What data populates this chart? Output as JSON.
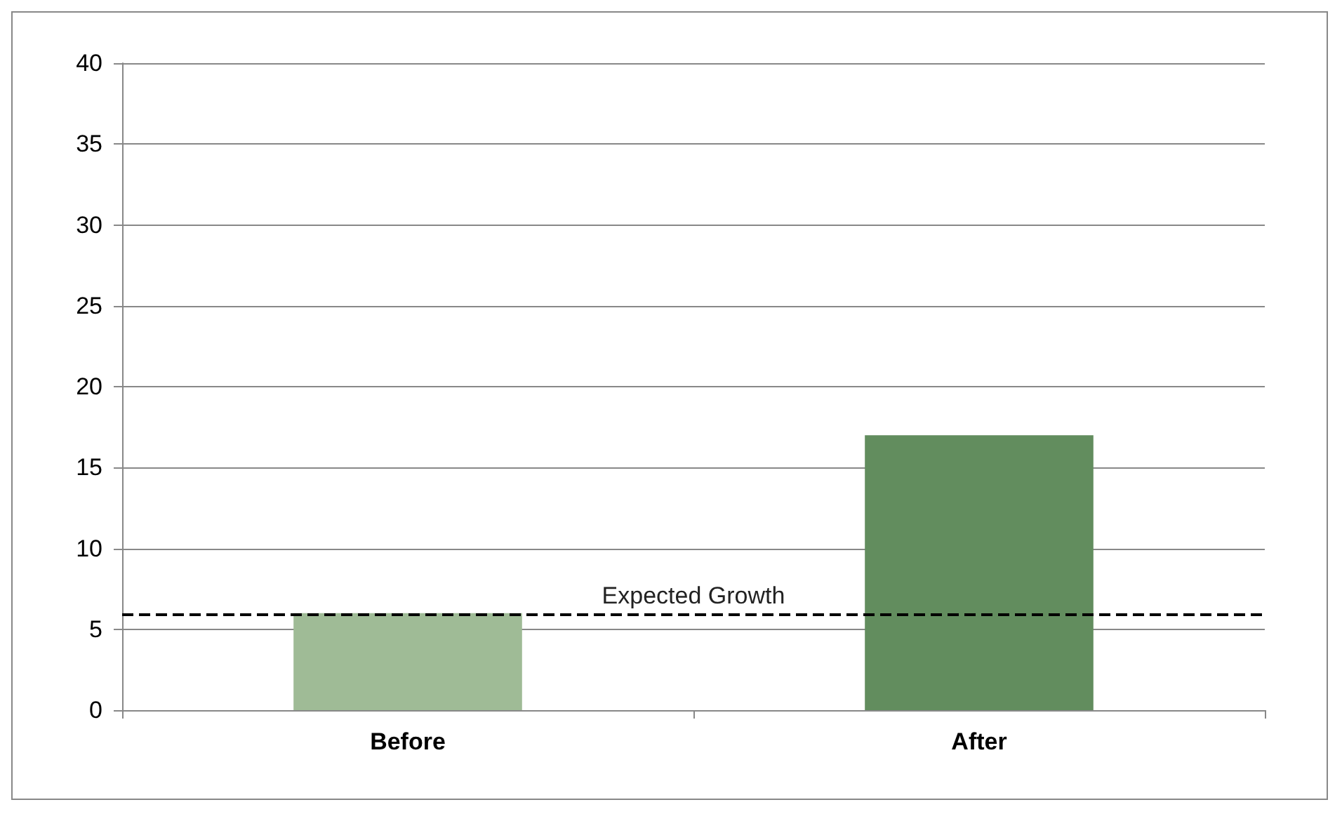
{
  "chart_data": {
    "type": "bar",
    "categories": [
      "Before",
      "After"
    ],
    "values": [
      6,
      17
    ],
    "colors": [
      "#9fbb96",
      "#628d5e"
    ],
    "ylim": [
      0,
      40
    ],
    "yticks": [
      0,
      5,
      10,
      15,
      20,
      25,
      30,
      35,
      40
    ],
    "grid": "y",
    "ref_lines": [
      {
        "axis": "y",
        "value": 5.9,
        "label": "Expected Growth",
        "color": "#000000",
        "line_style": "dashed"
      }
    ]
  }
}
